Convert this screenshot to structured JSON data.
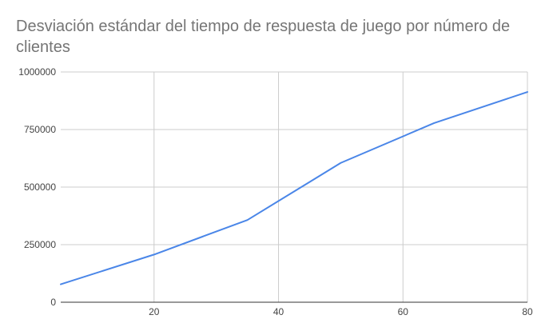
{
  "chart_data": {
    "type": "line",
    "title": "Desviación estándar del tiempo de respuesta de juego por número de clientes",
    "xlabel": "",
    "ylabel": "",
    "xlim": [
      5,
      80
    ],
    "ylim": [
      0,
      1000000
    ],
    "x_ticks": [
      20,
      40,
      60,
      80
    ],
    "x_tick_labels": [
      "20",
      "40",
      "60",
      "80"
    ],
    "y_ticks": [
      0,
      250000,
      500000,
      750000,
      1000000
    ],
    "y_tick_labels": [
      "0",
      "250000",
      "500000",
      "750000",
      "1000000"
    ],
    "grid": true,
    "legend": "none",
    "series": [
      {
        "color": "#4a86e8",
        "x": [
          5,
          20,
          35,
          50,
          65,
          80
        ],
        "values": [
          78000,
          207000,
          357000,
          605000,
          778000,
          913000
        ]
      }
    ]
  }
}
